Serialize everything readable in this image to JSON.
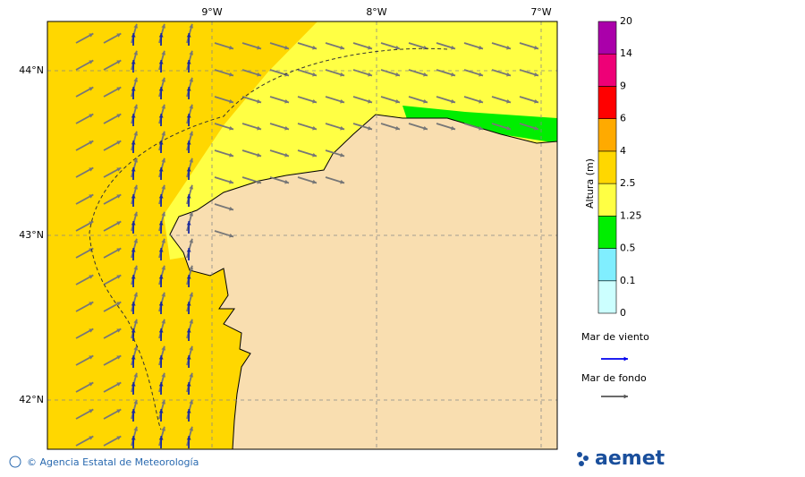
{
  "map": {
    "lon_labels": [
      "9°W",
      "8°W",
      "7°W"
    ],
    "lat_labels": [
      "44°N",
      "43°N",
      "42°N"
    ],
    "colorbar": {
      "title": "Altura (m)",
      "labels": [
        "0",
        "0.1",
        "0.5",
        "1.25",
        "2.5",
        "4",
        "6",
        "9",
        "14",
        "20"
      ],
      "colors": [
        "#ccffff",
        "#80eeff",
        "#00ee00",
        "#ffff44",
        "#ffd700",
        "#ffaa00",
        "#ff0000",
        "#ee0077",
        "#aa00aa"
      ]
    },
    "legend": [
      {
        "label": "Mar de viento",
        "color": "#0000ee"
      },
      {
        "label": "Mar de fondo",
        "color": "#555555"
      }
    ],
    "footer": {
      "credit": "© Agencia Estatal de Meteorología",
      "logo": "aemet"
    }
  }
}
